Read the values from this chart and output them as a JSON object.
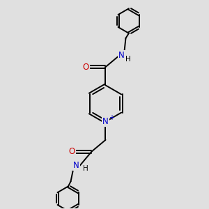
{
  "bg_color": "#e0e0e0",
  "bond_color": "#000000",
  "N_color": "#0000cc",
  "O_color": "#cc0000",
  "line_width": 1.4,
  "figsize": [
    3.0,
    3.0
  ],
  "dpi": 100,
  "xlim": [
    0,
    10
  ],
  "ylim": [
    0,
    10
  ]
}
